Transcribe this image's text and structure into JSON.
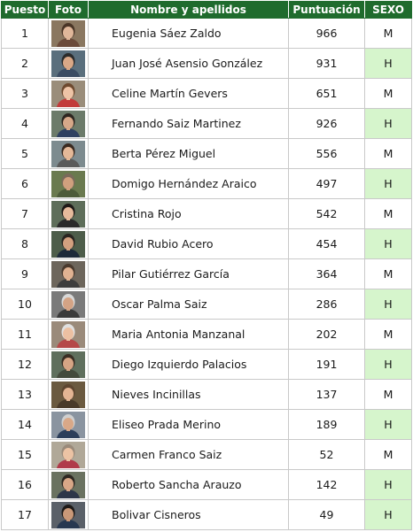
{
  "headers": {
    "rank": "Puesto",
    "photo": "Foto",
    "name": "Nombre y apellidos",
    "score": "Puntuación",
    "sex": "SEXO"
  },
  "colors": {
    "header_bg": "#1f6b2d",
    "male_cell_bg": "#d6f5cc"
  },
  "rows": [
    {
      "rank": "1",
      "name": "Eugenia Sáez Zaldo",
      "score": "966",
      "sex": "M",
      "photo": {
        "bg": "#8a7760",
        "skin": "#e0b79a",
        "hair": "#4a3526",
        "shirt": "#6b4a3a"
      }
    },
    {
      "rank": "2",
      "name": "Juan José Asensio González",
      "score": "931",
      "sex": "H",
      "photo": {
        "bg": "#5a6f7d",
        "skin": "#d9a887",
        "hair": "#2b2b2b",
        "shirt": "#3b4c63"
      }
    },
    {
      "rank": "3",
      "name": "Celine Martín Gevers",
      "score": "651",
      "sex": "M",
      "photo": {
        "bg": "#9a8d7a",
        "skin": "#eec4a6",
        "hair": "#6e4a2f",
        "shirt": "#c23b3b"
      }
    },
    {
      "rank": "4",
      "name": "Fernando Saiz Martinez",
      "score": "926",
      "sex": "H",
      "photo": {
        "bg": "#6c7b6a",
        "skin": "#d6a889",
        "hair": "#2e2620",
        "shirt": "#2f4060"
      }
    },
    {
      "rank": "5",
      "name": "Berta Pérez Miguel",
      "score": "556",
      "sex": "M",
      "photo": {
        "bg": "#7d8b8f",
        "skin": "#e4b898",
        "hair": "#3a2a20",
        "shirt": "#5a5a5a"
      }
    },
    {
      "rank": "6",
      "name": "Domigo Hernández Araico",
      "score": "497",
      "sex": "H",
      "photo": {
        "bg": "#6a7a4f",
        "skin": "#d0a07e",
        "hair": "#7a6a5a",
        "shirt": "#4d5b3a"
      }
    },
    {
      "rank": "7",
      "name": "Cristina Rojo",
      "score": "542",
      "sex": "M",
      "photo": {
        "bg": "#5e6e5a",
        "skin": "#e6bb9c",
        "hair": "#1f1a17",
        "shirt": "#2a2a2a"
      }
    },
    {
      "rank": "8",
      "name": "David Rubio Acero",
      "score": "454",
      "sex": "H",
      "photo": {
        "bg": "#4d5d4a",
        "skin": "#d2a07f",
        "hair": "#2a2520",
        "shirt": "#1d2a3a"
      }
    },
    {
      "rank": "9",
      "name": "Pilar Gutiérrez García",
      "score": "364",
      "sex": "M",
      "photo": {
        "bg": "#6d665c",
        "skin": "#e0b292",
        "hair": "#4a3a2e",
        "shirt": "#3d3d3d"
      }
    },
    {
      "rank": "10",
      "name": "Oscar Palma Saiz",
      "score": "286",
      "sex": "H",
      "photo": {
        "bg": "#7a7a7a",
        "skin": "#d4a385",
        "hair": "#d8d8d8",
        "shirt": "#3a3a3a"
      }
    },
    {
      "rank": "11",
      "name": "Maria Antonia Manzanal",
      "score": "202",
      "sex": "M",
      "photo": {
        "bg": "#9a8a7a",
        "skin": "#ecc0a2",
        "hair": "#e0e0e0",
        "shirt": "#b54848"
      }
    },
    {
      "rank": "12",
      "name": "Diego Izquierdo Palacios",
      "score": "191",
      "sex": "H",
      "photo": {
        "bg": "#5f6f5d",
        "skin": "#d6a585",
        "hair": "#3a2e24",
        "shirt": "#444a3c"
      }
    },
    {
      "rank": "13",
      "name": "Nieves Incinillas",
      "score": "137",
      "sex": "M",
      "photo": {
        "bg": "#6b5a40",
        "skin": "#e4b594",
        "hair": "#5e4630",
        "shirt": "#4a3a2a"
      }
    },
    {
      "rank": "14",
      "name": "Eliseo Prada Merino",
      "score": "189",
      "sex": "H",
      "photo": {
        "bg": "#8a94a0",
        "skin": "#d9a888",
        "hair": "#cfcfcf",
        "shirt": "#2c3e5a"
      }
    },
    {
      "rank": "15",
      "name": "Carmen Franco Saiz",
      "score": "52",
      "sex": "M",
      "photo": {
        "bg": "#b0a898",
        "skin": "#ecc3a4",
        "hair": "#9a8a7a",
        "shirt": "#b03a4a"
      }
    },
    {
      "rank": "16",
      "name": "Roberto Sancha Arauzo",
      "score": "142",
      "sex": "H",
      "photo": {
        "bg": "#6a7260",
        "skin": "#d8a787",
        "hair": "#2e2822",
        "shirt": "#2d3648"
      }
    },
    {
      "rank": "17",
      "name": "Bolivar Cisneros",
      "score": "49",
      "sex": "H",
      "photo": {
        "bg": "#5a6068",
        "skin": "#c99878",
        "hair": "#1e1a18",
        "shirt": "#283850"
      }
    }
  ]
}
